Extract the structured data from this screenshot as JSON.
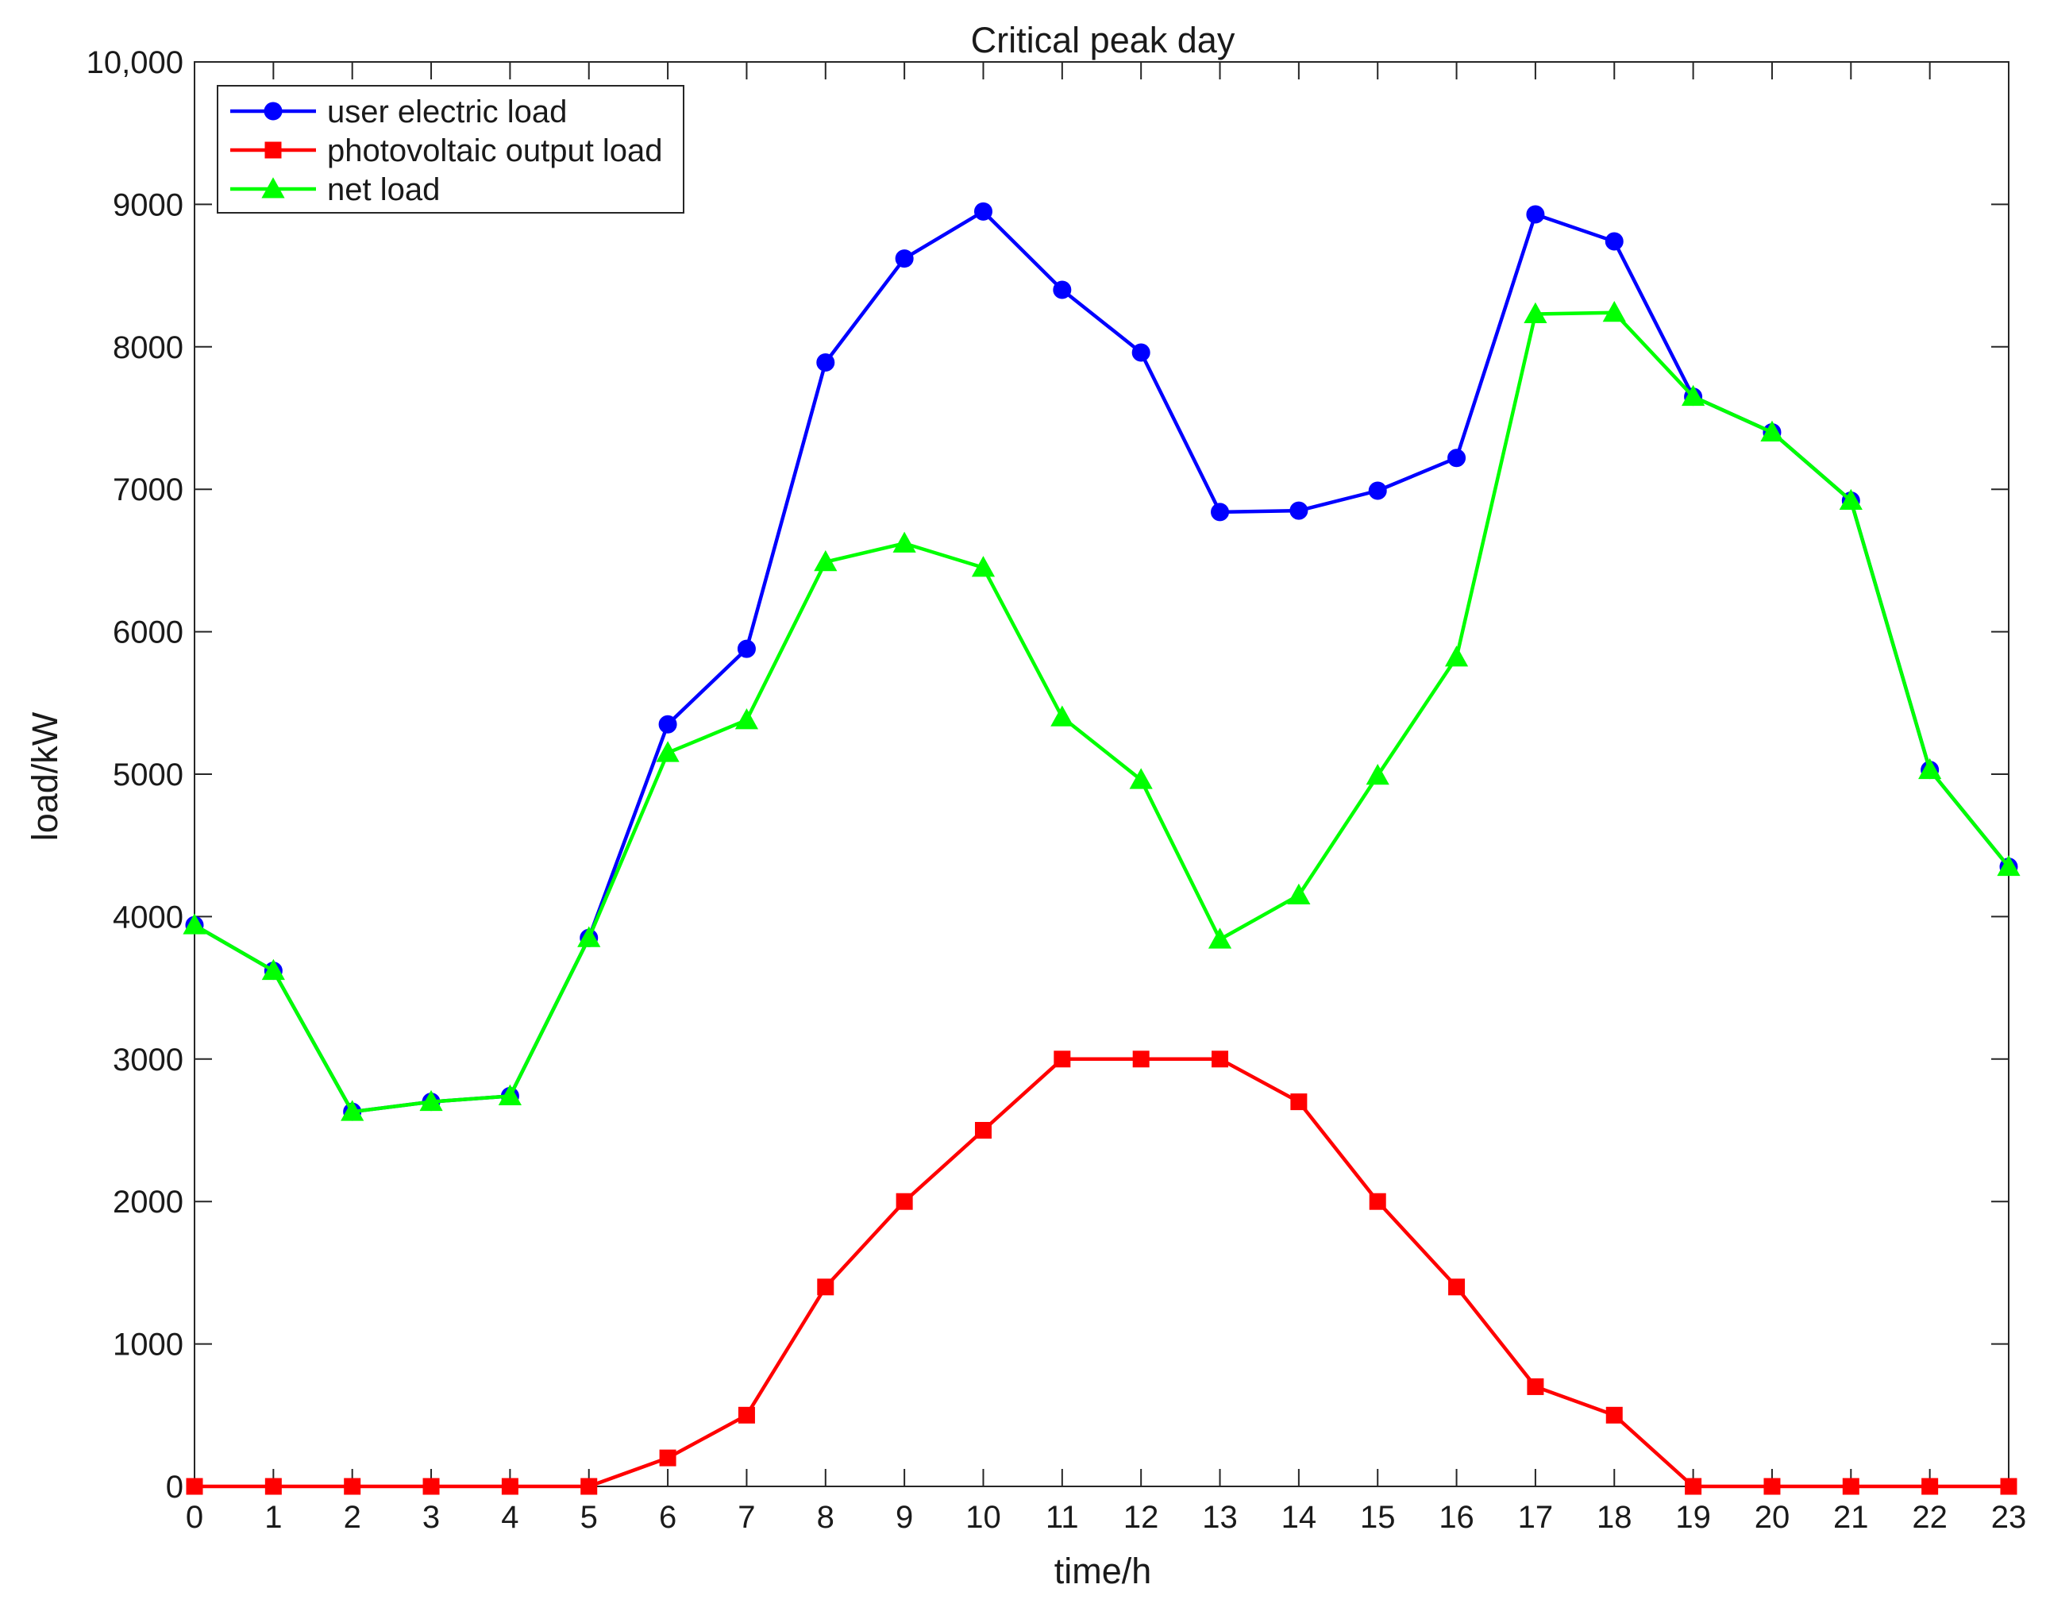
{
  "chart_data": {
    "type": "line",
    "title": "Critical peak day",
    "xlabel": "time/h",
    "ylabel": "load/kW",
    "xlim": [
      0,
      23
    ],
    "ylim": [
      0,
      10000
    ],
    "x": [
      0,
      1,
      2,
      3,
      4,
      5,
      6,
      7,
      8,
      9,
      10,
      11,
      12,
      13,
      14,
      15,
      16,
      17,
      18,
      19,
      20,
      21,
      22,
      23
    ],
    "x_tick_labels": [
      "0",
      "1",
      "2",
      "3",
      "4",
      "5",
      "6",
      "7",
      "8",
      "9",
      "10",
      "11",
      "12",
      "13",
      "14",
      "15",
      "16",
      "17",
      "18",
      "19",
      "20",
      "21",
      "22",
      "23"
    ],
    "y_ticks": [
      0,
      1000,
      2000,
      3000,
      4000,
      5000,
      6000,
      7000,
      8000,
      9000,
      10000
    ],
    "y_tick_labels": [
      "0",
      "1000",
      "2000",
      "3000",
      "4000",
      "5000",
      "6000",
      "7000",
      "8000",
      "9000",
      "10,000"
    ],
    "grid": false,
    "legend_position": "top-left",
    "series": [
      {
        "name": "user electric load",
        "color": "#0000ff",
        "marker": "circle",
        "values": [
          3940,
          3620,
          2630,
          2700,
          2740,
          3850,
          5350,
          5880,
          7890,
          8620,
          8950,
          8400,
          7960,
          6840,
          6850,
          6990,
          7220,
          8930,
          8740,
          7650,
          7400,
          6920,
          5030,
          4350
        ]
      },
      {
        "name": "photovoltaic output load",
        "color": "#ff0000",
        "marker": "square",
        "values": [
          0,
          0,
          0,
          0,
          0,
          0,
          200,
          500,
          1400,
          2000,
          2500,
          3000,
          3000,
          3000,
          2700,
          2000,
          1400,
          700,
          500,
          0,
          0,
          0,
          0,
          0
        ]
      },
      {
        "name": "net load",
        "color": "#00ff00",
        "marker": "triangle",
        "values": [
          3940,
          3620,
          2630,
          2700,
          2740,
          3850,
          5150,
          5380,
          6490,
          6620,
          6450,
          5400,
          4960,
          3840,
          4150,
          4990,
          5820,
          8230,
          8240,
          7650,
          7400,
          6920,
          5030,
          4350
        ]
      }
    ]
  }
}
